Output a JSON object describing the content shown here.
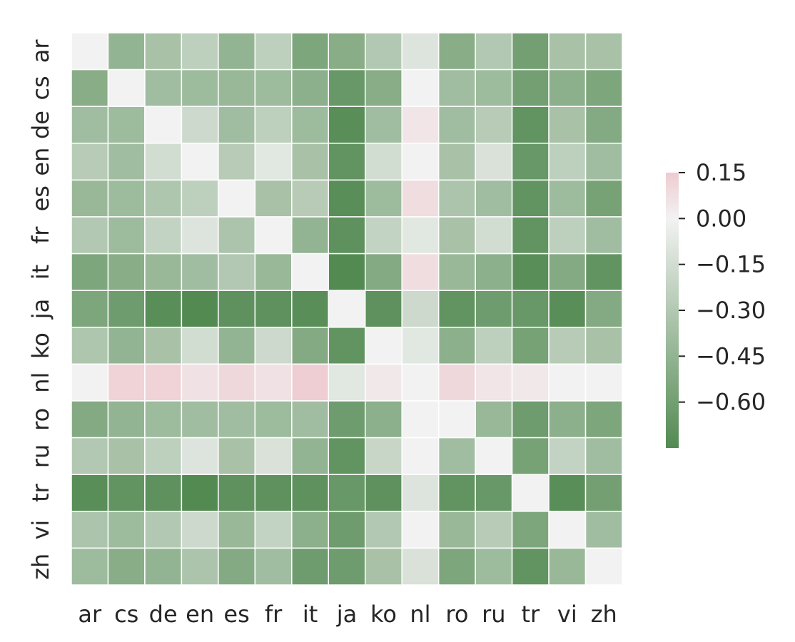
{
  "chart_data": {
    "type": "heatmap",
    "title": "",
    "xlabel": "",
    "ylabel": "",
    "rows": [
      "ar",
      "cs",
      "de",
      "en",
      "es",
      "fr",
      "it",
      "ja",
      "ko",
      "nl",
      "ro",
      "ru",
      "tr",
      "vi",
      "zh"
    ],
    "cols": [
      "ar",
      "cs",
      "de",
      "en",
      "es",
      "fr",
      "it",
      "ja",
      "ko",
      "nl",
      "ro",
      "ru",
      "tr",
      "vi",
      "zh"
    ],
    "values": [
      [
        0.0,
        -0.45,
        -0.35,
        -0.25,
        -0.45,
        -0.25,
        -0.55,
        -0.5,
        -0.3,
        -0.1,
        -0.5,
        -0.3,
        -0.6,
        -0.35,
        -0.35
      ],
      [
        -0.5,
        0.0,
        -0.38,
        -0.4,
        -0.42,
        -0.4,
        -0.48,
        -0.65,
        -0.5,
        0.0,
        -0.38,
        -0.4,
        -0.6,
        -0.48,
        -0.55
      ],
      [
        -0.38,
        -0.4,
        0.0,
        -0.18,
        -0.38,
        -0.25,
        -0.4,
        -0.72,
        -0.38,
        0.05,
        -0.38,
        -0.28,
        -0.68,
        -0.35,
        -0.52
      ],
      [
        -0.28,
        -0.38,
        -0.15,
        0.0,
        -0.28,
        -0.08,
        -0.35,
        -0.68,
        -0.15,
        0.0,
        -0.35,
        -0.12,
        -0.65,
        -0.25,
        -0.38
      ],
      [
        -0.42,
        -0.4,
        -0.32,
        -0.25,
        0.0,
        -0.35,
        -0.28,
        -0.72,
        -0.4,
        0.08,
        -0.33,
        -0.38,
        -0.68,
        -0.4,
        -0.58
      ],
      [
        -0.3,
        -0.4,
        -0.22,
        -0.1,
        -0.33,
        0.0,
        -0.45,
        -0.7,
        -0.22,
        -0.08,
        -0.35,
        -0.15,
        -0.68,
        -0.25,
        -0.38
      ],
      [
        -0.55,
        -0.5,
        -0.42,
        -0.38,
        -0.3,
        -0.42,
        0.0,
        -0.75,
        -0.52,
        0.08,
        -0.42,
        -0.48,
        -0.72,
        -0.52,
        -0.68
      ],
      [
        -0.55,
        -0.62,
        -0.72,
        -0.75,
        -0.7,
        -0.7,
        -0.72,
        0.0,
        -0.7,
        -0.18,
        -0.68,
        -0.62,
        -0.65,
        -0.72,
        -0.52
      ],
      [
        -0.32,
        -0.45,
        -0.35,
        -0.15,
        -0.45,
        -0.18,
        -0.52,
        -0.68,
        0.0,
        -0.08,
        -0.48,
        -0.25,
        -0.58,
        -0.28,
        -0.35
      ],
      [
        0.0,
        0.12,
        0.12,
        0.06,
        0.1,
        0.06,
        0.14,
        -0.08,
        0.04,
        0.0,
        0.1,
        0.05,
        0.04,
        0.0,
        0.0
      ],
      [
        -0.52,
        -0.45,
        -0.4,
        -0.38,
        -0.38,
        -0.4,
        -0.38,
        -0.62,
        -0.48,
        0.0,
        0.0,
        -0.42,
        -0.62,
        -0.48,
        -0.55
      ],
      [
        -0.3,
        -0.35,
        -0.25,
        -0.1,
        -0.35,
        -0.12,
        -0.45,
        -0.68,
        -0.2,
        0.0,
        -0.38,
        0.0,
        -0.58,
        -0.22,
        -0.38
      ],
      [
        -0.72,
        -0.68,
        -0.7,
        -0.75,
        -0.7,
        -0.7,
        -0.7,
        -0.65,
        -0.7,
        -0.1,
        -0.68,
        -0.65,
        0.0,
        -0.72,
        -0.6
      ],
      [
        -0.33,
        -0.4,
        -0.3,
        -0.18,
        -0.42,
        -0.22,
        -0.48,
        -0.62,
        -0.3,
        0.0,
        -0.42,
        -0.28,
        -0.55,
        0.0,
        -0.38
      ],
      [
        -0.4,
        -0.5,
        -0.45,
        -0.33,
        -0.52,
        -0.38,
        -0.62,
        -0.62,
        -0.35,
        -0.12,
        -0.55,
        -0.4,
        -0.68,
        -0.42,
        0.0
      ]
    ],
    "vmin": -0.75,
    "vmax": 0.15,
    "colormap": {
      "negative_color": "#538a52",
      "center_color": "#f2f2f2",
      "positive_color": "#eecbd0"
    },
    "colorbar": {
      "ticks": [
        0.15,
        0.0,
        -0.15,
        -0.3,
        -0.45,
        -0.6
      ],
      "tick_labels": [
        "0.15",
        "0.00",
        "−0.15",
        "−0.30",
        "−0.45",
        "−0.60"
      ]
    },
    "grid": false,
    "legend": "colorbar-right"
  }
}
